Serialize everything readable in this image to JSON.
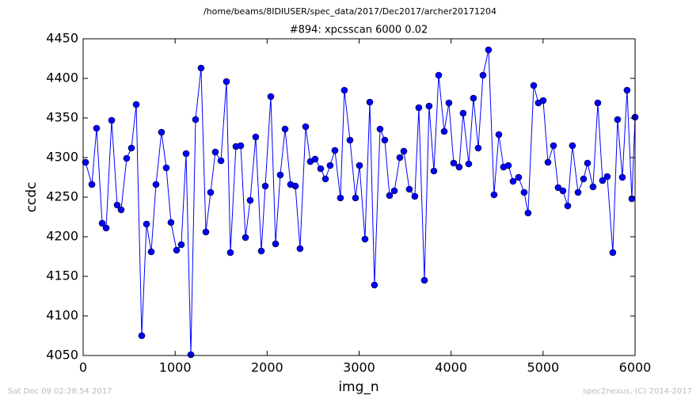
{
  "chart_data": {
    "type": "line",
    "suptitle": "/home/beams/8IDIUSER/spec_data/2017/Dec2017/archer20171204",
    "title": "#894: xpcsscan 6000 0.02",
    "x_label": "img_n",
    "y_label": "ccdc",
    "footer_left": "Sat Dec 09 02:28:54 2017",
    "footer_right": "spec2nexus, (C) 2014-2017",
    "x": [
      26,
      95,
      146,
      207,
      250,
      310,
      370,
      413,
      473,
      525,
      577,
      637,
      689,
      740,
      792,
      852,
      904,
      955,
      1016,
      1067,
      1119,
      1171,
      1222,
      1282,
      1334,
      1386,
      1437,
      1498,
      1558,
      1601,
      1661,
      1713,
      1765,
      1816,
      1876,
      1937,
      1980,
      2040,
      2092,
      2143,
      2195,
      2255,
      2307,
      2358,
      2419,
      2470,
      2522,
      2582,
      2634,
      2685,
      2737,
      2797,
      2840,
      2901,
      2961,
      3004,
      3064,
      3116,
      3167,
      3228,
      3279,
      3331,
      3383,
      3443,
      3486,
      3546,
      3606,
      3649,
      3710,
      3761,
      3813,
      3865,
      3925,
      3976,
      4028,
      4088,
      4131,
      4192,
      4243,
      4295,
      4347,
      4407,
      4467,
      4519,
      4570,
      4622,
      4674,
      4734,
      4794,
      4837,
      4898,
      4949,
      5001,
      5053,
      5113,
      5164,
      5216,
      5268,
      5319,
      5380,
      5440,
      5483,
      5543,
      5595,
      5646,
      5698,
      5758,
      5810,
      5862,
      5913,
      5965,
      6000
    ],
    "series": [
      {
        "color": "#0000ff",
        "values": [
          4294,
          4266,
          4337,
          4217,
          4211,
          4347,
          4240,
          4234,
          4299,
          4312,
          4367,
          4075,
          4216,
          4181,
          4266,
          4332,
          4287,
          4218,
          4183,
          4190,
          4305,
          4051,
          4348,
          4413,
          4206,
          4256,
          4307,
          4296,
          4396,
          4180,
          4314,
          4315,
          4199,
          4246,
          4326,
          4182,
          4264,
          4377,
          4191,
          4278,
          4336,
          4266,
          4264,
          4185,
          4339,
          4295,
          4298,
          4286,
          4273,
          4290,
          4309,
          4249,
          4385,
          4322,
          4249,
          4290,
          4197,
          4370,
          4139,
          4336,
          4322,
          4252,
          4258,
          4300,
          4308,
          4260,
          4251,
          4363,
          4145,
          4365,
          4283,
          4404,
          4333,
          4369,
          4293,
          4288,
          4356,
          4292,
          4375,
          4312,
          4404,
          4436,
          4253,
          4329,
          4288,
          4290,
          4270,
          4275,
          4256,
          4230,
          4391,
          4369,
          4372,
          4294,
          4315,
          4262,
          4258,
          4239,
          4315,
          4256,
          4273,
          4293,
          4263,
          4369,
          4271,
          4276,
          4180,
          4348,
          4275,
          4385,
          4248,
          4351
        ]
      }
    ],
    "xlim": [
      0,
      6000
    ],
    "xticks": [
      0,
      1000,
      2000,
      3000,
      4000,
      5000,
      6000
    ],
    "ylim": [
      4050,
      4450
    ],
    "yticks": [
      4050,
      4100,
      4150,
      4200,
      4250,
      4300,
      4350,
      4400,
      4450
    ]
  }
}
